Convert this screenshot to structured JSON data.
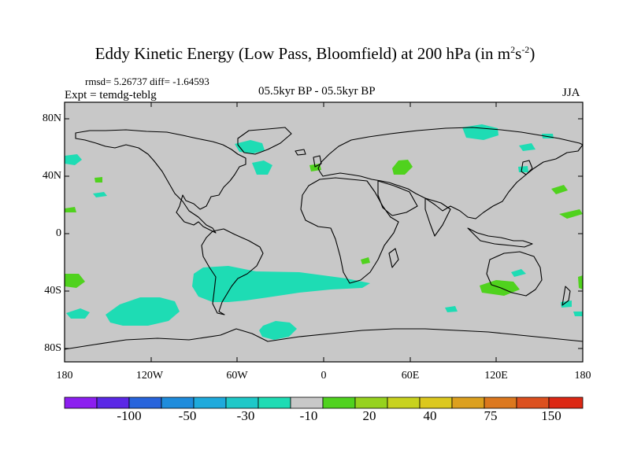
{
  "title": {
    "text": "Eddy Kinetic Energy (Low Pass, Bloomfield) at 200 hPa (in m",
    "sup1": "2",
    "mid": "s",
    "sup2": "-2",
    "end": ")"
  },
  "stats": "rmsd= 5.26737 diff= -1.64593",
  "expt": "Expt = temdg-teblg",
  "period": "05.5kyr BP - 05.5kyr BP",
  "season": "JJA",
  "lon_labels": [
    "180",
    "120W",
    "60W",
    "0",
    "60E",
    "120E",
    "180"
  ],
  "lat_labels": [
    "80N",
    "40N",
    "0",
    "40S",
    "80S"
  ],
  "colorbar": {
    "colors": [
      "#8c1ef0",
      "#5a28e6",
      "#2864dc",
      "#1e8cdc",
      "#1eaadc",
      "#1ec8c8",
      "#1edcb4",
      "#c8c8c8",
      "#50d21e",
      "#96d21e",
      "#c8d21e",
      "#dcc81e",
      "#dca01e",
      "#dc781e",
      "#dc501e",
      "#dc2814"
    ],
    "labels": [
      "-100",
      "-50",
      "-30",
      "-10",
      "20",
      "40",
      "75",
      "150"
    ]
  },
  "anomaly_colors": {
    "negative": "#1edcb4",
    "positive": "#50d21e",
    "background": "#c8c8c8"
  }
}
